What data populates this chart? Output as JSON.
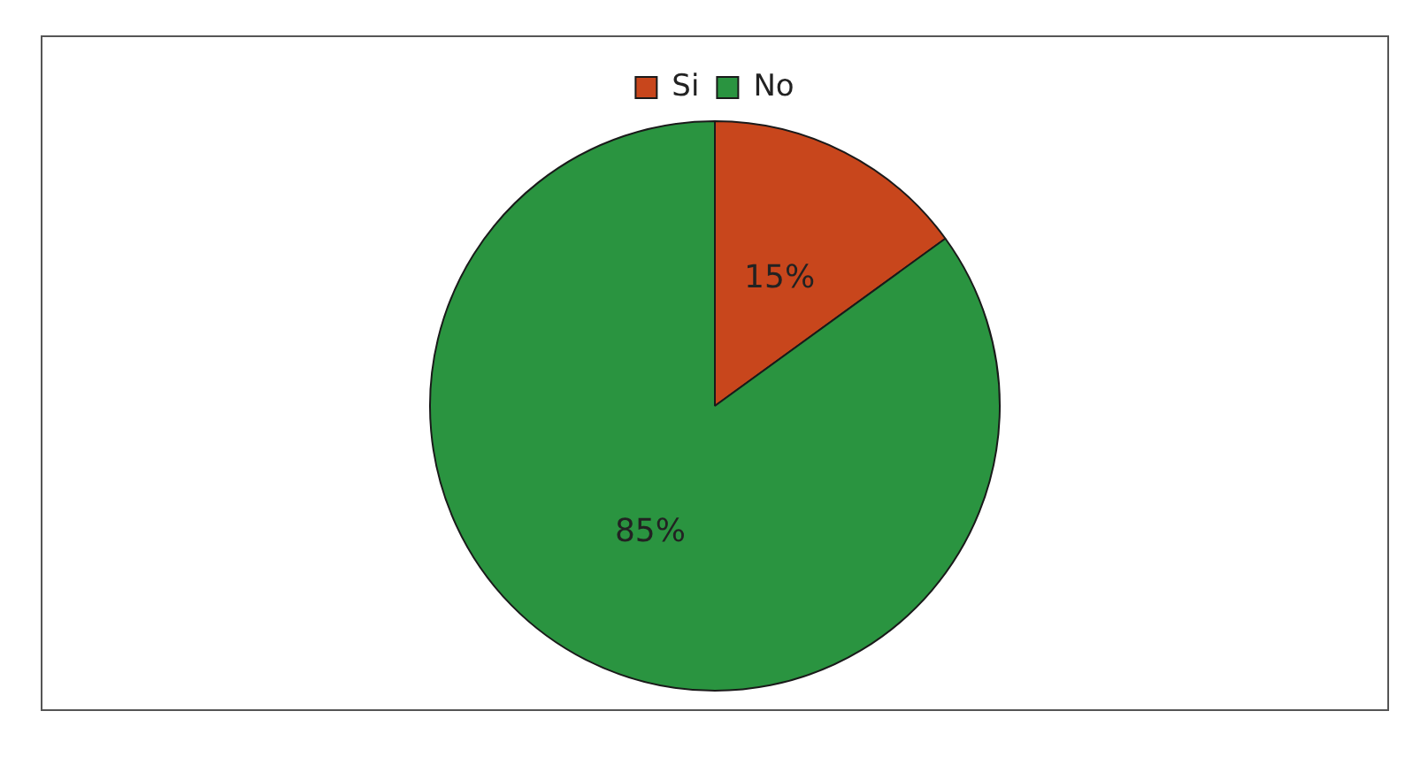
{
  "chart_data": {
    "type": "pie",
    "categories": [
      "Si",
      "No"
    ],
    "values": [
      15,
      85
    ],
    "colors": [
      "#c8461c",
      "#2a9440"
    ],
    "value_labels": [
      "15%",
      "85%"
    ],
    "legend": "top"
  }
}
